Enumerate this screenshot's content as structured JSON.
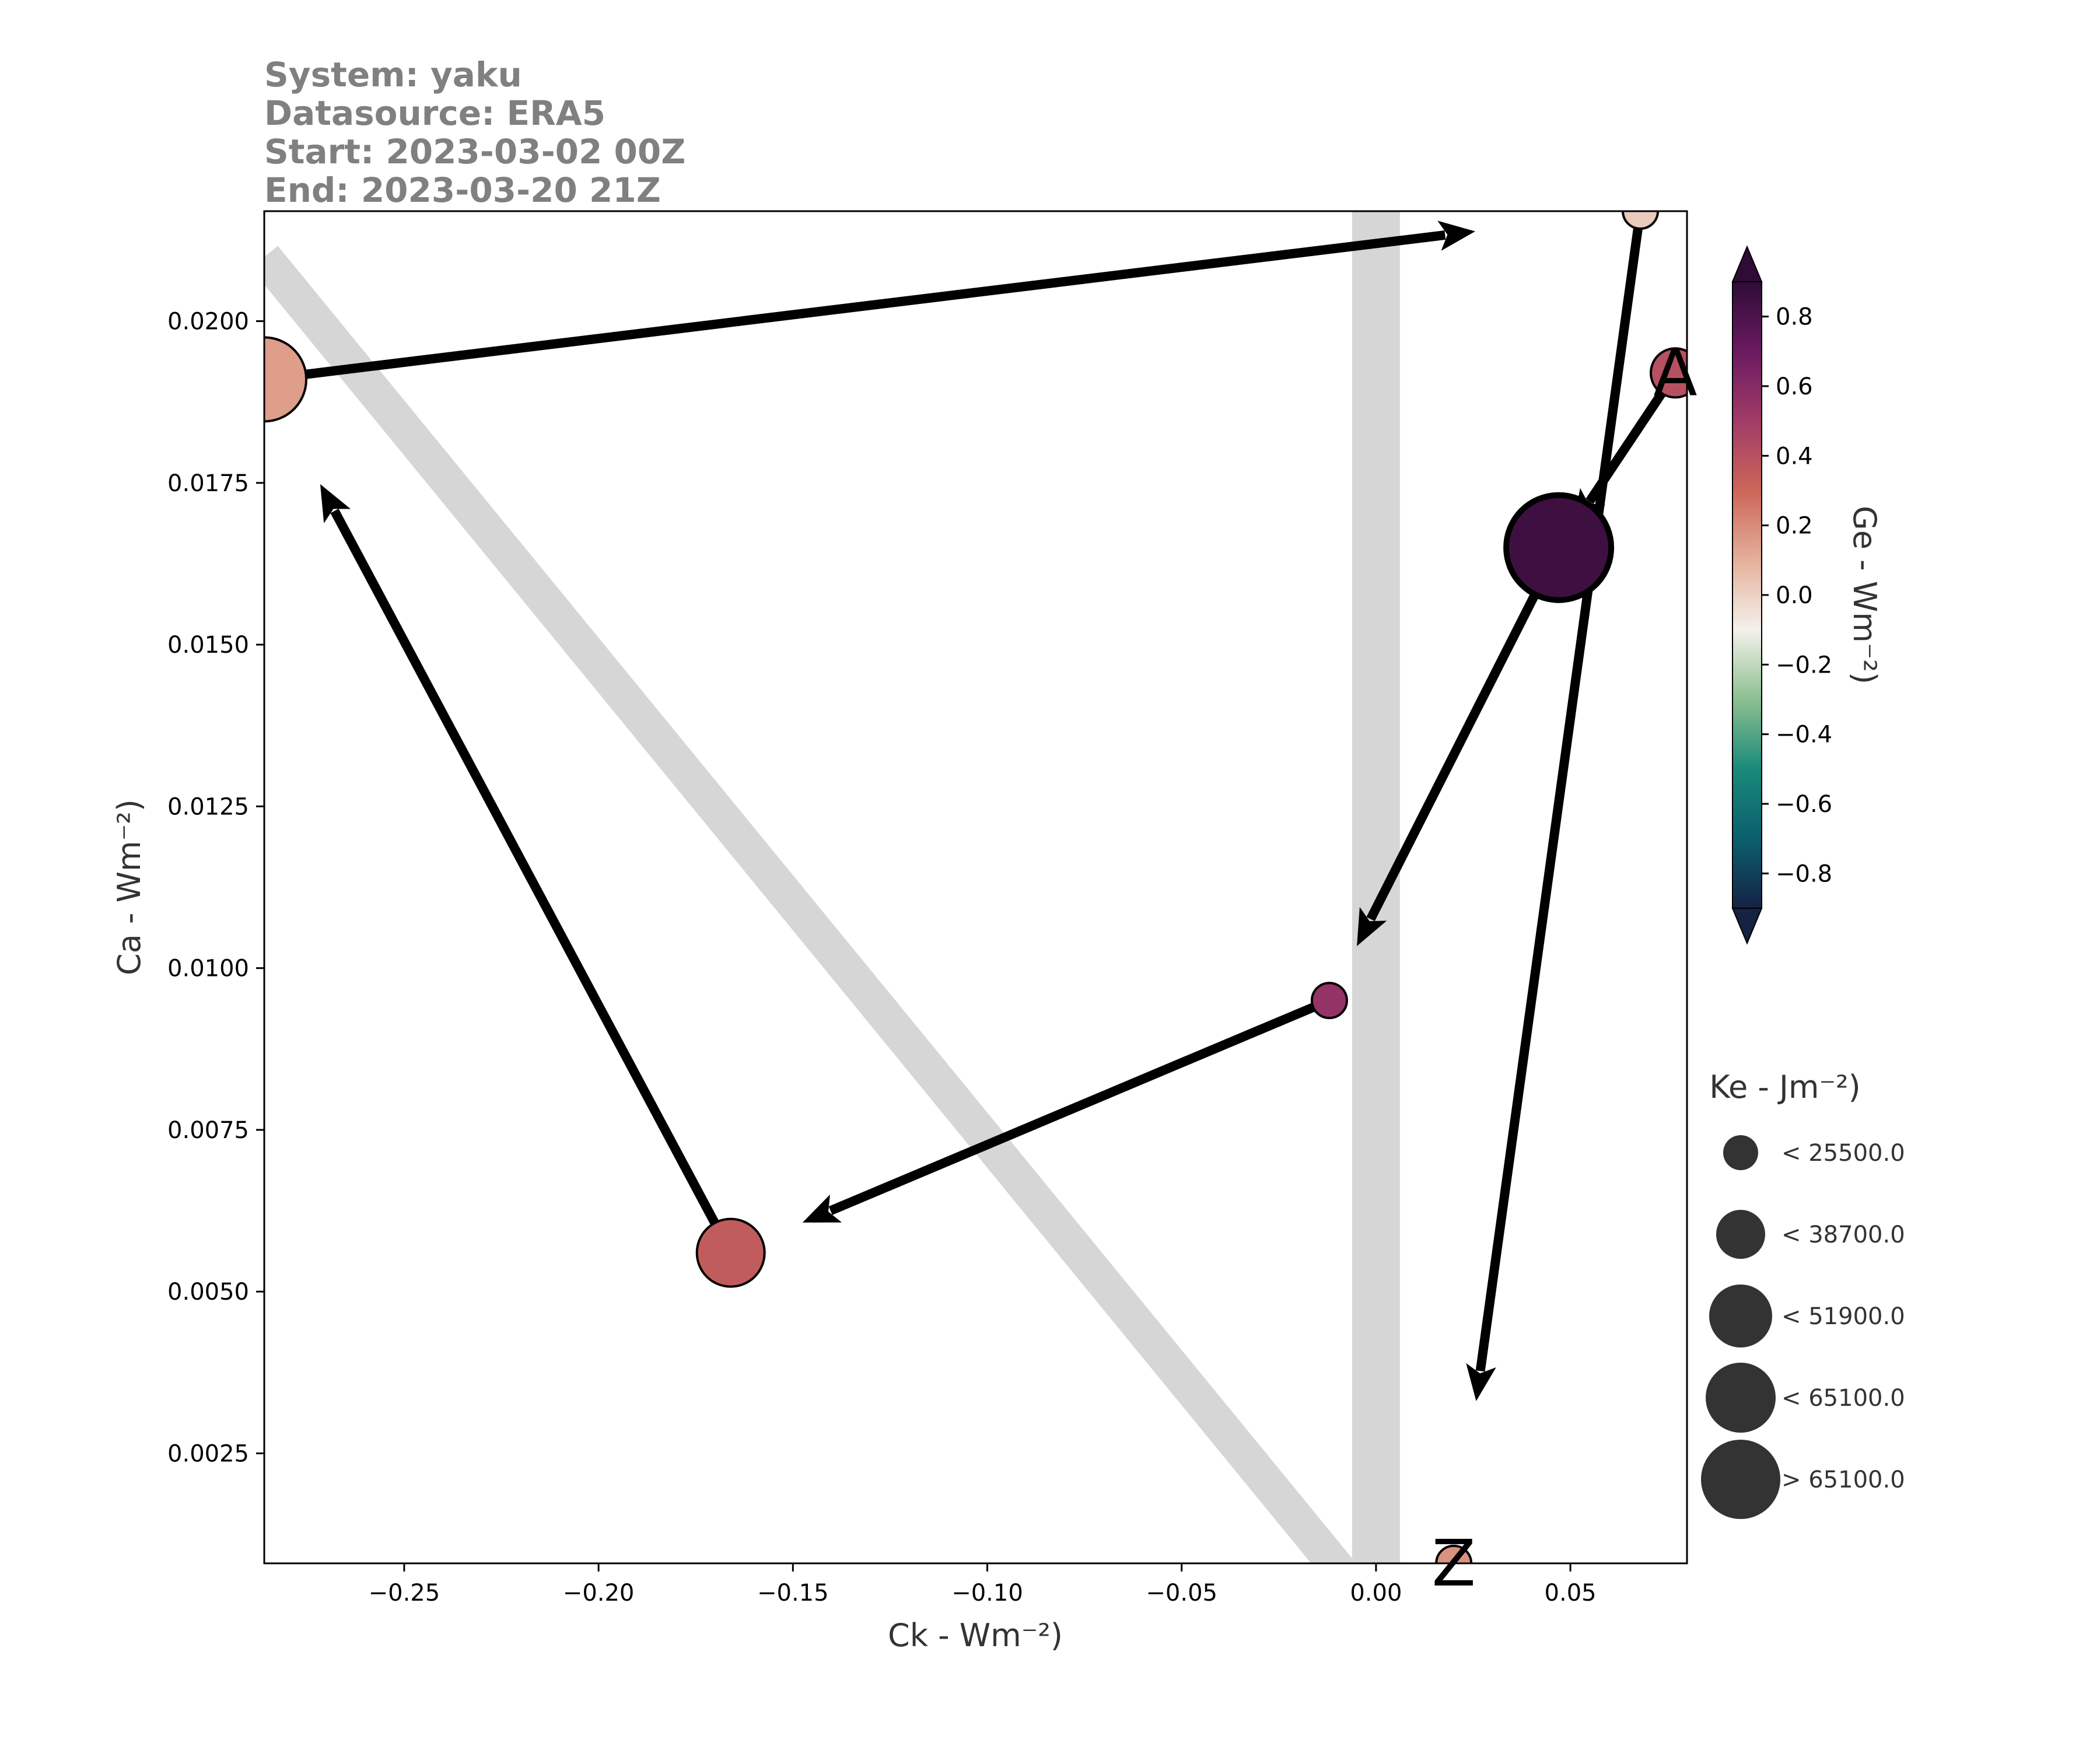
{
  "header": {
    "system": "System: yaku",
    "datasource": "Datasource: ERA5",
    "start": "Start: 2023-03-02 00Z",
    "end": "End: 2023-03-20 21Z"
  },
  "chart_data": {
    "type": "scatter",
    "xlabel": "Ck - Wm⁻²)",
    "ylabel": "Ca - Wm⁻²)",
    "xlim": [
      -0.286,
      0.08
    ],
    "ylim": [
      0.0008,
      0.0217
    ],
    "xticks": [
      -0.25,
      -0.2,
      -0.15,
      -0.1,
      -0.05,
      0.0,
      0.05
    ],
    "xtick_labels": [
      "−0.25",
      "−0.20",
      "−0.15",
      "−0.10",
      "−0.05",
      "0.00",
      "0.05"
    ],
    "yticks": [
      0.0025,
      0.005,
      0.0075,
      0.01,
      0.0125,
      0.015,
      0.0175,
      0.02
    ],
    "ytick_labels": [
      "0.0025",
      "0.0050",
      "0.0075",
      "0.0100",
      "0.0125",
      "0.0150",
      "0.0175",
      "0.0200"
    ],
    "points": [
      {
        "x": 0.077,
        "y": 0.0192,
        "ge": 0.4,
        "size_class": 1
      },
      {
        "x": 0.047,
        "y": 0.0165,
        "ge": 0.85,
        "size_class": 4
      },
      {
        "x": -0.012,
        "y": 0.0095,
        "ge": 0.55,
        "size_class": 0
      },
      {
        "x": -0.166,
        "y": 0.0056,
        "ge": 0.35,
        "size_class": 2
      },
      {
        "x": -0.286,
        "y": 0.0191,
        "ge": 0.15,
        "size_class": 3
      },
      {
        "x": 0.068,
        "y": 0.0217,
        "ge": 0.02,
        "size_class": 0
      },
      {
        "x": 0.02,
        "y": 0.0008,
        "ge": 0.18,
        "size_class": 0
      }
    ],
    "start_label": "A",
    "end_label": "Z",
    "reference_bands": [
      "x = 0",
      "y = -x slope line"
    ],
    "colorbar": {
      "label": "Ge - Wm⁻²)",
      "range": [
        -0.9,
        0.9
      ],
      "ticks": [
        0.8,
        0.6,
        0.4,
        0.2,
        0.0,
        -0.2,
        -0.4,
        -0.6,
        -0.8
      ],
      "tick_labels": [
        "0.8",
        "0.6",
        "0.4",
        "0.2",
        "0.0",
        "−0.2",
        "−0.4",
        "−0.6",
        "−0.8"
      ],
      "colormap_stops": [
        "#152244",
        "#0b5f6e",
        "#1a8a7a",
        "#8cbf90",
        "#f4f1ec",
        "#e4b09a",
        "#cc6659",
        "#a13c68",
        "#6b1a61",
        "#2e0c36"
      ],
      "extend": "both"
    },
    "size_legend": {
      "title": "Ke - Jm⁻²)",
      "entries": [
        "< 25500.0",
        "< 38700.0",
        "< 51900.0",
        "< 65100.0",
        "> 65100.0"
      ],
      "marker_color": "#333333"
    },
    "grid": false,
    "legend_position": "right"
  }
}
